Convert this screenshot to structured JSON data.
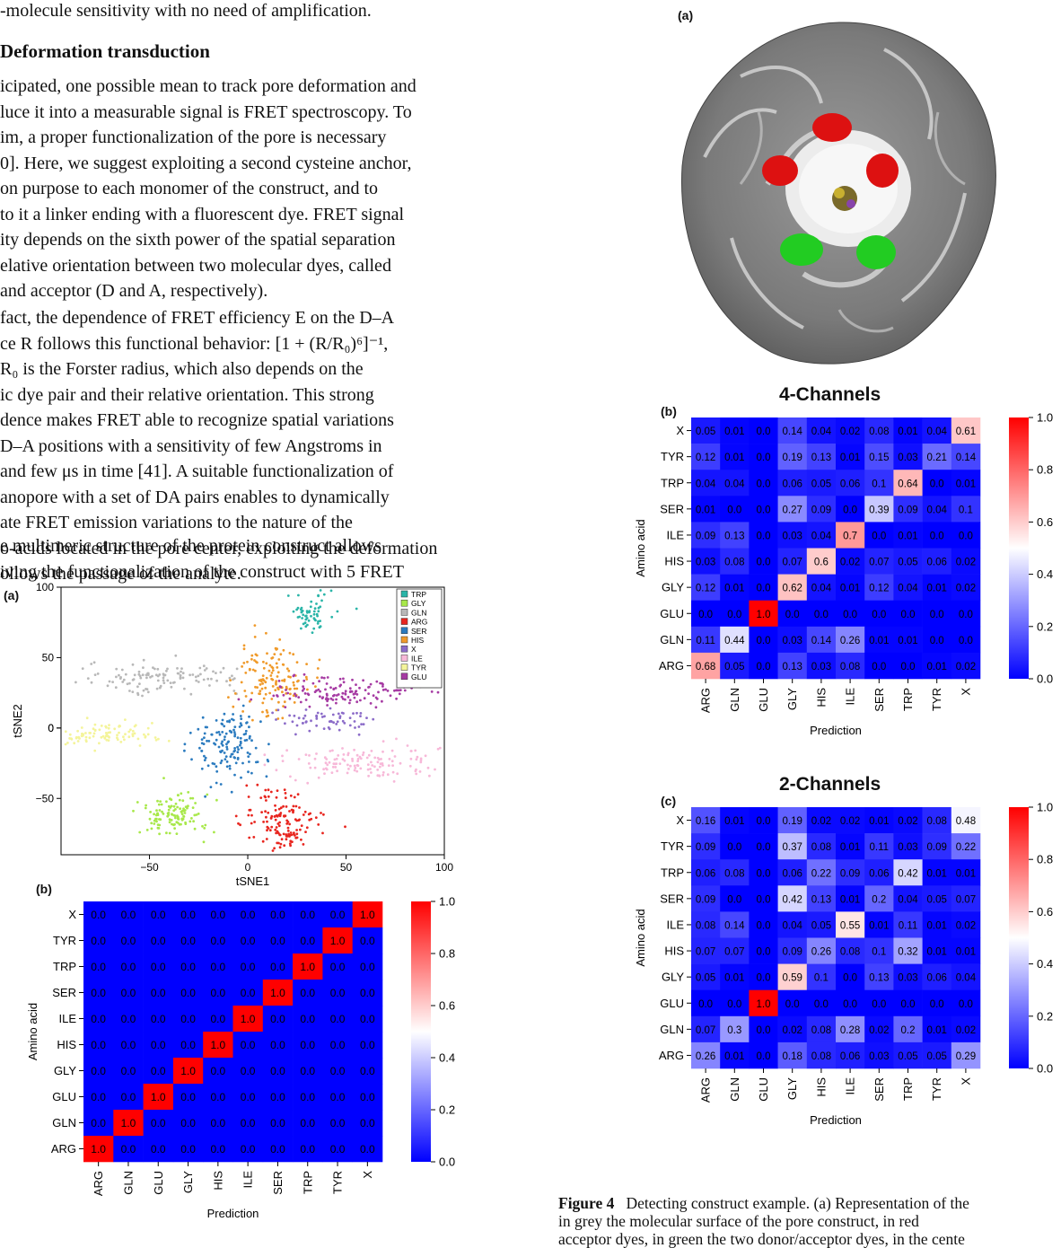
{
  "text": {
    "line0": "-molecule sensitivity with no need of amplification.",
    "heading": "Deformation transduction",
    "para1": [
      "icipated, one possible mean to track pore deformation and",
      "luce it into a measurable signal is FRET spectroscopy. To",
      "im, a proper functionalization of the pore is necessary",
      "0]. Here, we suggest exploiting a second cysteine anchor,",
      " on purpose to each monomer of the construct, and to",
      " to it a linker ending with a fluorescent dye. FRET signal",
      "ity depends on the sixth power of the spatial separation",
      "elative orientation between two molecular dyes, called",
      " and acceptor (D and A, respectively)."
    ],
    "para2": [
      "fact, the dependence of FRET efficiency E on the D–A",
      "ce R follows this functional behavior: [1 + (R/R₀)⁶]⁻¹,",
      " R₀ is the Forster radius, which also depends on the",
      "ic dye pair and their relative orientation. This strong",
      "dence makes FRET able to recognize spatial variations",
      " D–A positions with a sensitivity of few Angstroms in",
      "and few μs in time [41]. A suitable functionalization of",
      "anopore with a set of DA pairs enables to dynamically",
      "ate FRET emission variations to the nature of the",
      "o-acids located in the pore center, exploiting the deformation",
      "ollows the passage of the analyte."
    ],
    "para3": [
      "e multimeric structure of the protein construct allows",
      "iving the functionalization of the construct with 5 FRET"
    ]
  },
  "caption": {
    "label": "Figure 4",
    "line1": "Detecting construct example. (a) Representation of the",
    "line2": "in grey the molecular surface of the pore construct, in red",
    "line3": "acceptor dyes, in green the two donor/acceptor dyes, in the cente"
  },
  "colors": {
    "heat_low": "#0000ff",
    "heat_mid": "#ffffff",
    "heat_high": "#ff0000",
    "donor": "#22cc22",
    "acceptor": "#dd1111",
    "protein": "#7a7a7a"
  },
  "panels": {
    "left_a": "(a)",
    "left_b": "(b)",
    "right_a": "(a)",
    "right_b": "(b)",
    "right_c": "(c)"
  },
  "chart_data": [
    {
      "type": "scatter",
      "panel": "(a) left",
      "xlabel": "tSNE1",
      "ylabel": "tSNE2",
      "xlim": [
        -95,
        100
      ],
      "ylim": [
        -90,
        100
      ],
      "xticks": [
        -50,
        0,
        50,
        100
      ],
      "yticks": [
        -50,
        0,
        50,
        100
      ],
      "legend_position": "top-right",
      "series": [
        {
          "name": "TRP",
          "color": "#2ab5a8",
          "center": [
            32,
            82
          ],
          "spread": [
            6,
            7
          ],
          "n": 60
        },
        {
          "name": "GLY",
          "color": "#a8e84a",
          "center": [
            -38,
            -62
          ],
          "spread": [
            9,
            8
          ],
          "n": 120
        },
        {
          "name": "GLN",
          "color": "#b8b8b8",
          "center": [
            -42,
            36
          ],
          "spread": [
            20,
            5
          ],
          "n": 120
        },
        {
          "name": "ARG",
          "color": "#e8251e",
          "center": [
            18,
            -68
          ],
          "spread": [
            10,
            12
          ],
          "n": 150
        },
        {
          "name": "SER",
          "color": "#2b7bbf",
          "center": [
            -10,
            -12
          ],
          "spread": [
            9,
            14
          ],
          "n": 140
        },
        {
          "name": "HIS",
          "color": "#f09a2a",
          "center": [
            12,
            36
          ],
          "spread": [
            9,
            13
          ],
          "n": 140
        },
        {
          "name": "X",
          "color": "#8b6bc8",
          "center": [
            38,
            6
          ],
          "spread": [
            12,
            4
          ],
          "n": 60
        },
        {
          "name": "ILE",
          "color": "#f7b8d8",
          "center": [
            58,
            -25
          ],
          "spread": [
            22,
            6
          ],
          "n": 130
        },
        {
          "name": "TYR",
          "color": "#f4f49a",
          "center": [
            -72,
            -5
          ],
          "spread": [
            15,
            4
          ],
          "n": 90
        },
        {
          "name": "GLU",
          "color": "#a63ba3",
          "center": [
            48,
            26
          ],
          "spread": [
            18,
            5
          ],
          "n": 130
        }
      ]
    },
    {
      "type": "heatmap",
      "panel": "(b) left",
      "xlabel": "Prediction",
      "ylabel": "Amino acid",
      "categories": [
        "ARG",
        "GLN",
        "GLU",
        "GLY",
        "HIS",
        "ILE",
        "SER",
        "TRP",
        "TYR",
        "X"
      ],
      "colorbar_ticks": [
        "0.0",
        "0.2",
        "0.4",
        "0.6",
        "0.8",
        "1.0"
      ],
      "values": "identity"
    },
    {
      "type": "heatmap",
      "panel": "(b) right",
      "title": "4-Channels",
      "xlabel": "Prediction",
      "ylabel": "Amino acid",
      "categories": [
        "ARG",
        "GLN",
        "GLU",
        "GLY",
        "HIS",
        "ILE",
        "SER",
        "TRP",
        "TYR",
        "X"
      ],
      "colorbar_ticks": [
        "0.0",
        "0.2",
        "0.4",
        "0.6",
        "0.8",
        "1.0"
      ],
      "rows": {
        "X": [
          "0.05",
          "0.01",
          "0.0",
          "0.14",
          "0.04",
          "0.02",
          "0.08",
          "0.01",
          "0.04",
          "0.61"
        ],
        "TYR": [
          "0.12",
          "0.01",
          "0.0",
          "0.19",
          "0.13",
          "0.01",
          "0.15",
          "0.03",
          "0.21",
          "0.14"
        ],
        "TRP": [
          "0.04",
          "0.04",
          "0.0",
          "0.06",
          "0.05",
          "0.06",
          "0.1",
          "0.64",
          "0.0",
          "0.01"
        ],
        "SER": [
          "0.01",
          "0.0",
          "0.0",
          "0.27",
          "0.09",
          "0.0",
          "0.39",
          "0.09",
          "0.04",
          "0.1"
        ],
        "ILE": [
          "0.09",
          "0.13",
          "0.0",
          "0.03",
          "0.04",
          "0.7",
          "0.0",
          "0.01",
          "0.0",
          "0.0"
        ],
        "HIS": [
          "0.03",
          "0.08",
          "0.0",
          "0.07",
          "0.6",
          "0.02",
          "0.07",
          "0.05",
          "0.06",
          "0.02"
        ],
        "GLY": [
          "0.12",
          "0.01",
          "0.0",
          "0.62",
          "0.04",
          "0.01",
          "0.12",
          "0.04",
          "0.01",
          "0.02"
        ],
        "GLU": [
          "0.0",
          "0.0",
          "1.0",
          "0.0",
          "0.0",
          "0.0",
          "0.0",
          "0.0",
          "0.0",
          "0.0"
        ],
        "GLN": [
          "0.11",
          "0.44",
          "0.0",
          "0.03",
          "0.14",
          "0.26",
          "0.01",
          "0.01",
          "0.0",
          "0.0"
        ],
        "ARG": [
          "0.68",
          "0.05",
          "0.0",
          "0.13",
          "0.03",
          "0.08",
          "0.0",
          "0.0",
          "0.01",
          "0.02"
        ]
      }
    },
    {
      "type": "heatmap",
      "panel": "(c) right",
      "title": "2-Channels",
      "xlabel": "Prediction",
      "ylabel": "Amino acid",
      "categories": [
        "ARG",
        "GLN",
        "GLU",
        "GLY",
        "HIS",
        "ILE",
        "SER",
        "TRP",
        "TYR",
        "X"
      ],
      "colorbar_ticks": [
        "0.0",
        "0.2",
        "0.4",
        "0.6",
        "0.8",
        "1.0"
      ],
      "rows": {
        "X": [
          "0.16",
          "0.01",
          "0.0",
          "0.19",
          "0.02",
          "0.02",
          "0.01",
          "0.02",
          "0.08",
          "0.48"
        ],
        "TYR": [
          "0.09",
          "0.0",
          "0.0",
          "0.37",
          "0.08",
          "0.01",
          "0.11",
          "0.03",
          "0.09",
          "0.22"
        ],
        "TRP": [
          "0.06",
          "0.08",
          "0.0",
          "0.06",
          "0.22",
          "0.09",
          "0.06",
          "0.42",
          "0.01",
          "0.01"
        ],
        "SER": [
          "0.09",
          "0.0",
          "0.0",
          "0.42",
          "0.13",
          "0.01",
          "0.2",
          "0.04",
          "0.05",
          "0.07"
        ],
        "ILE": [
          "0.08",
          "0.14",
          "0.0",
          "0.04",
          "0.05",
          "0.55",
          "0.01",
          "0.11",
          "0.01",
          "0.02"
        ],
        "HIS": [
          "0.07",
          "0.07",
          "0.0",
          "0.09",
          "0.26",
          "0.08",
          "0.1",
          "0.32",
          "0.01",
          "0.01"
        ],
        "GLY": [
          "0.05",
          "0.01",
          "0.0",
          "0.59",
          "0.1",
          "0.0",
          "0.13",
          "0.03",
          "0.06",
          "0.04"
        ],
        "GLU": [
          "0.0",
          "0.0",
          "1.0",
          "0.0",
          "0.0",
          "0.0",
          "0.0",
          "0.0",
          "0.0",
          "0.0"
        ],
        "GLN": [
          "0.07",
          "0.3",
          "0.0",
          "0.02",
          "0.08",
          "0.28",
          "0.02",
          "0.2",
          "0.01",
          "0.02"
        ],
        "ARG": [
          "0.26",
          "0.01",
          "0.0",
          "0.18",
          "0.08",
          "0.06",
          "0.03",
          "0.05",
          "0.05",
          "0.29"
        ]
      }
    }
  ]
}
